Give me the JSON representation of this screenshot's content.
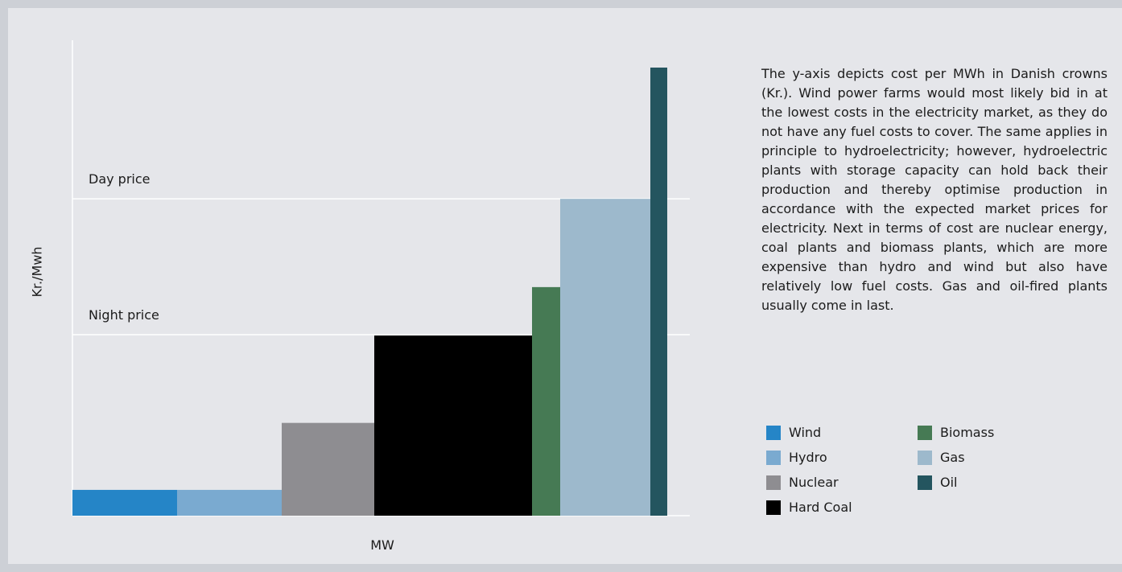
{
  "chart_data": {
    "type": "bar",
    "title": "",
    "xlabel": "MW",
    "ylabel": "Kr./Mwh",
    "ylim": [
      0,
      100
    ],
    "grid": true,
    "legend_position": "right",
    "note": "Variable-width bars (merit order); widths are relative MW capacities",
    "reference_lines": [
      {
        "label": "Day price",
        "value": 70
      },
      {
        "label": "Night price",
        "value": 40
      }
    ],
    "series": [
      {
        "name": "Wind",
        "value": 5.7,
        "width": 130,
        "color": "#2585c7"
      },
      {
        "name": "Hydro",
        "value": 5.7,
        "width": 130,
        "color": "#7aaad0"
      },
      {
        "name": "Nuclear",
        "value": 20.5,
        "width": 115,
        "color": "#8e8d91"
      },
      {
        "name": "Hard Coal",
        "value": 39.8,
        "width": 196,
        "color": "#000000"
      },
      {
        "name": "Biomass",
        "value": 50.5,
        "width": 35,
        "color": "#467a54"
      },
      {
        "name": "Gas",
        "value": 70,
        "width": 112,
        "color": "#9db9cc"
      },
      {
        "name": "Oil",
        "value": 99,
        "width": 21,
        "color": "#24555f"
      }
    ]
  },
  "legend": [
    {
      "label": "Wind",
      "color": "#2585c7"
    },
    {
      "label": "Hydro",
      "color": "#7aaad0"
    },
    {
      "label": "Nuclear",
      "color": "#8e8d91"
    },
    {
      "label": "Hard Coal",
      "color": "#000000"
    },
    {
      "label": "Biomass",
      "color": "#467a54"
    },
    {
      "label": "Gas",
      "color": "#9db9cc"
    },
    {
      "label": "Oil",
      "color": "#24555f"
    }
  ],
  "description": "The y-axis depicts cost per MWh in Danish crowns (Kr.). Wind power farms would most likely bid in at the lowest costs in the electricity market, as they do not have any fuel costs to cover. The same applies in principle to hydroelectricity; however, hydroelectric plants with storage capacity can hold back their production and thereby optimise production in accordance with the expected market prices for electricity. Next in terms of cost are nuclear energy, coal plants and biomass plants, which are more expensive than hydro and wind but also have relatively low fuel costs. Gas and oil-fired plants usually come in last."
}
